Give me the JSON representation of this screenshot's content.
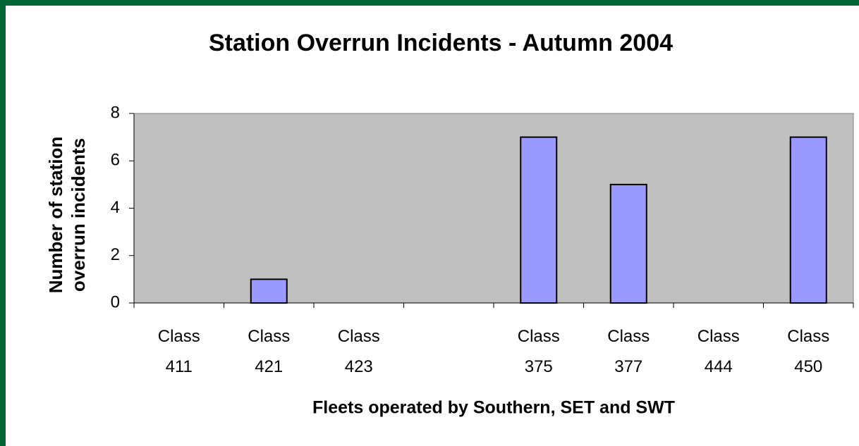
{
  "chart_data": {
    "type": "bar",
    "title": "Station Overrun Incidents - Autumn 2004",
    "x_label": "Fleets operated by Southern, SET and SWT",
    "y_label": "Number of station overrun incidents",
    "categories": [
      "Class 411",
      "Class 421",
      "Class 423",
      null,
      "Class 375",
      "Class 377",
      "Class 444",
      "Class 450"
    ],
    "values": [
      0,
      1,
      0,
      null,
      7,
      5,
      0,
      7
    ],
    "color": "#9999ff",
    "ylim": [
      0,
      8
    ],
    "yticks": [
      0,
      2,
      4,
      6,
      8
    ],
    "grid": false
  }
}
